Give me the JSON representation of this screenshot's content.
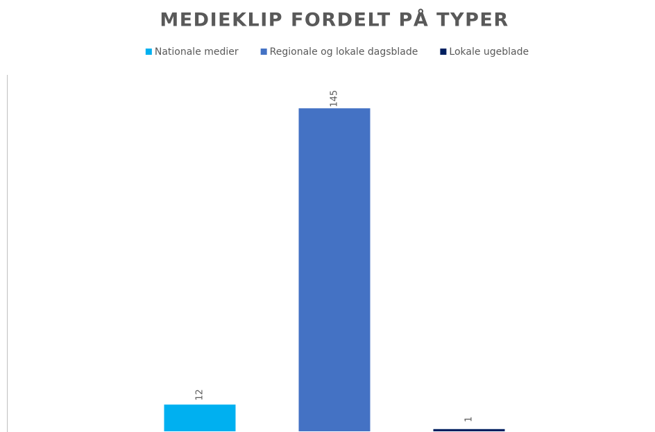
{
  "chart_data": {
    "type": "bar",
    "title": "MEDIEKLIP FORDELT PÅ TYPER",
    "categories": [
      null
    ],
    "series": [
      {
        "name": "Nationale medier",
        "color": "#00b0f0",
        "values": [
          12
        ]
      },
      {
        "name": "Regionale og lokale dagsblade",
        "color": "#4472c4",
        "values": [
          145
        ]
      },
      {
        "name": "Lokale ugeblade",
        "color": "#002060",
        "values": [
          1
        ]
      }
    ],
    "ylim": [
      0,
      160
    ],
    "legend": "top",
    "data_labels": true
  }
}
